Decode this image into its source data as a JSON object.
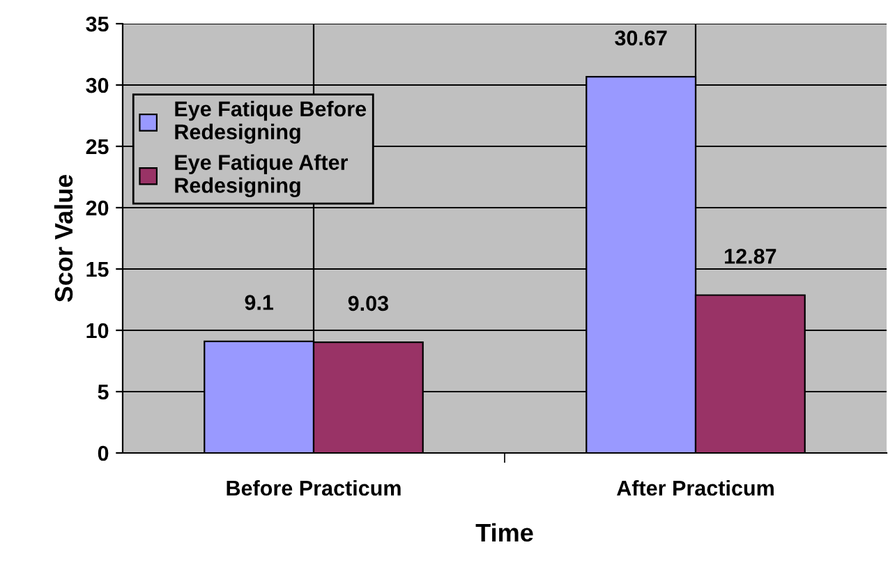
{
  "chart_data": {
    "type": "bar",
    "xlabel": "Time",
    "ylabel": "Scor Value",
    "categories": [
      "Before Practicum",
      "After Practicum"
    ],
    "series": [
      {
        "name": "Eye Fatique Before Redesigning",
        "color": "#9999ff",
        "values": [
          9.1,
          30.67
        ]
      },
      {
        "name": "Eye Fatique After Redesigning",
        "color": "#993366",
        "values": [
          9.03,
          12.87
        ]
      }
    ],
    "ylim": [
      0,
      35
    ],
    "yticks": [
      0,
      5,
      10,
      15,
      20,
      25,
      30,
      35
    ],
    "grid": true,
    "legend": "top left",
    "data_labels": true
  }
}
